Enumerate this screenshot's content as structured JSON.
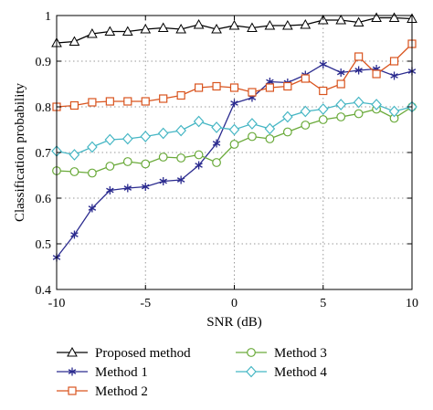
{
  "chart_data": {
    "type": "line",
    "xlabel": "SNR (dB)",
    "ylabel": "Classification probability",
    "xlim": [
      -10,
      10
    ],
    "ylim": [
      0.4,
      1.0
    ],
    "xticks": [
      -10,
      -5,
      0,
      5,
      10
    ],
    "yticks": [
      0.4,
      0.5,
      0.6,
      0.7,
      0.8,
      0.9,
      1.0
    ],
    "xtick_labels": [
      "-10",
      "-5",
      "0",
      "5",
      "10"
    ],
    "ytick_labels": [
      "0.4",
      "0.5",
      "0.6",
      "0.7",
      "0.8",
      "0.9",
      "1"
    ],
    "grid": true,
    "legend_position": "below",
    "x": [
      -10,
      -9,
      -8,
      -7,
      -6,
      -5,
      -4,
      -3,
      -2,
      -1,
      0,
      1,
      2,
      3,
      4,
      5,
      6,
      7,
      8,
      9,
      10
    ],
    "series": [
      {
        "name": "Proposed method",
        "color": "#000000",
        "marker": "triangle",
        "values": [
          0.94,
          0.943,
          0.96,
          0.965,
          0.965,
          0.97,
          0.973,
          0.97,
          0.98,
          0.97,
          0.978,
          0.973,
          0.978,
          0.978,
          0.98,
          0.99,
          0.99,
          0.985,
          0.995,
          0.995,
          0.993
        ]
      },
      {
        "name": "Method 1",
        "color": "#2b2b8f",
        "marker": "star",
        "values": [
          0.47,
          0.52,
          0.578,
          0.617,
          0.622,
          0.625,
          0.637,
          0.64,
          0.672,
          0.72,
          0.808,
          0.82,
          0.855,
          0.853,
          0.87,
          0.893,
          0.875,
          0.88,
          0.883,
          0.868,
          0.878
        ]
      },
      {
        "name": "Method 2",
        "color": "#d9541e",
        "marker": "square",
        "values": [
          0.8,
          0.803,
          0.81,
          0.812,
          0.812,
          0.812,
          0.818,
          0.825,
          0.842,
          0.845,
          0.842,
          0.832,
          0.842,
          0.845,
          0.862,
          0.835,
          0.85,
          0.91,
          0.872,
          0.9,
          0.938
        ]
      },
      {
        "name": "Method 3",
        "color": "#6aaa3a",
        "marker": "circle",
        "values": [
          0.66,
          0.658,
          0.655,
          0.67,
          0.68,
          0.675,
          0.69,
          0.688,
          0.695,
          0.678,
          0.718,
          0.735,
          0.73,
          0.745,
          0.76,
          0.772,
          0.778,
          0.785,
          0.795,
          0.775,
          0.8
        ]
      },
      {
        "name": "Method 4",
        "color": "#45b6c4",
        "marker": "diamond",
        "values": [
          0.703,
          0.695,
          0.712,
          0.728,
          0.73,
          0.735,
          0.742,
          0.748,
          0.768,
          0.755,
          0.75,
          0.763,
          0.752,
          0.778,
          0.79,
          0.795,
          0.805,
          0.81,
          0.805,
          0.79,
          0.8
        ]
      }
    ]
  }
}
